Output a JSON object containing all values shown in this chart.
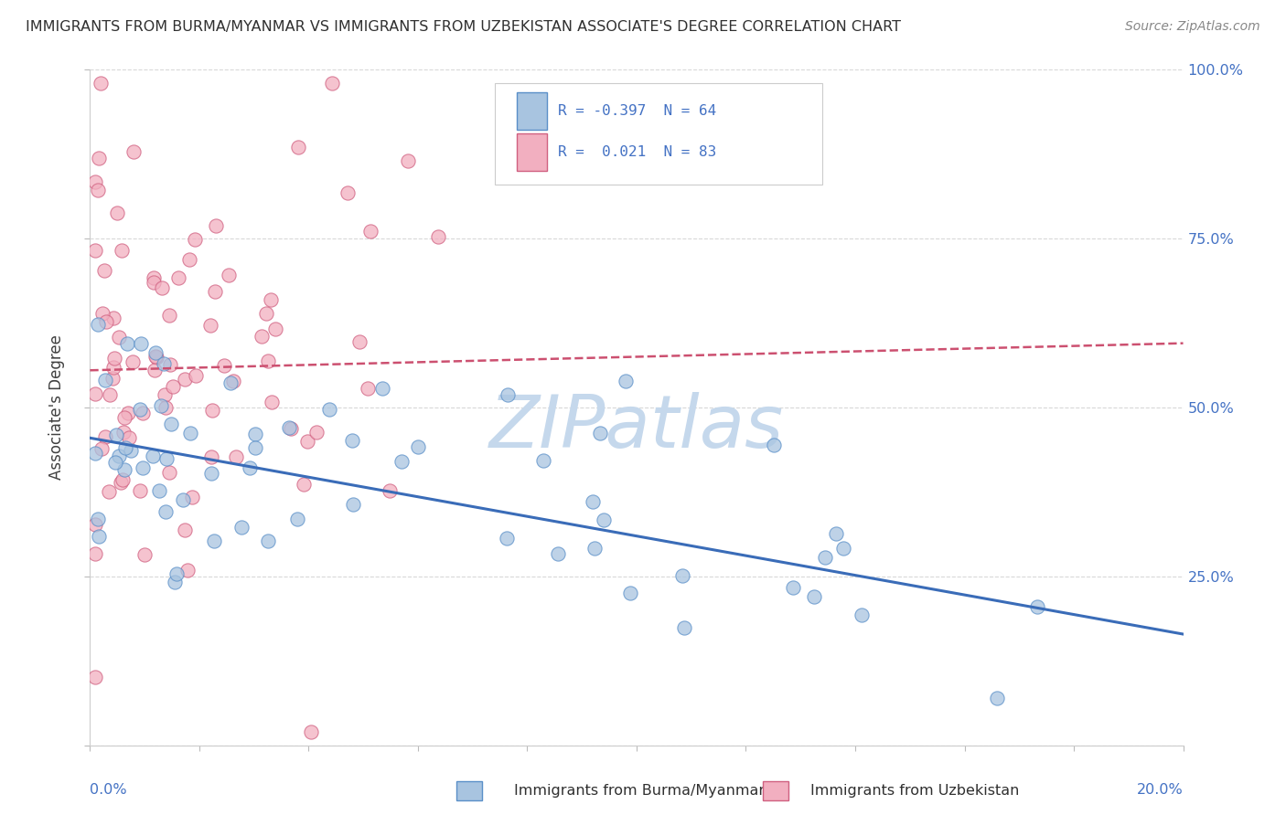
{
  "title": "IMMIGRANTS FROM BURMA/MYANMAR VS IMMIGRANTS FROM UZBEKISTAN ASSOCIATE'S DEGREE CORRELATION CHART",
  "source": "Source: ZipAtlas.com",
  "xmin": 0.0,
  "xmax": 0.2,
  "ymin": 0.0,
  "ymax": 1.0,
  "blue_R": -0.397,
  "blue_N": 64,
  "pink_R": 0.021,
  "pink_N": 83,
  "blue_color": "#a8c4e0",
  "pink_color": "#f2afc0",
  "blue_edge_color": "#5a8fc8",
  "pink_edge_color": "#d06080",
  "blue_line_color": "#3a6cb8",
  "pink_line_color": "#cc5070",
  "blue_label": "Immigrants from Burma/Myanmar",
  "pink_label": "Immigrants from Uzbekistan",
  "watermark": "ZIPatlas",
  "watermark_color": "#c5d8ec",
  "background_color": "#ffffff",
  "grid_color": "#d8d8d8",
  "title_color": "#303030",
  "axis_label_color": "#4472c4",
  "ylabel": "Associate's Degree",
  "blue_line_y0": 0.455,
  "blue_line_y1": 0.165,
  "pink_line_y0": 0.555,
  "pink_line_y1": 0.595
}
